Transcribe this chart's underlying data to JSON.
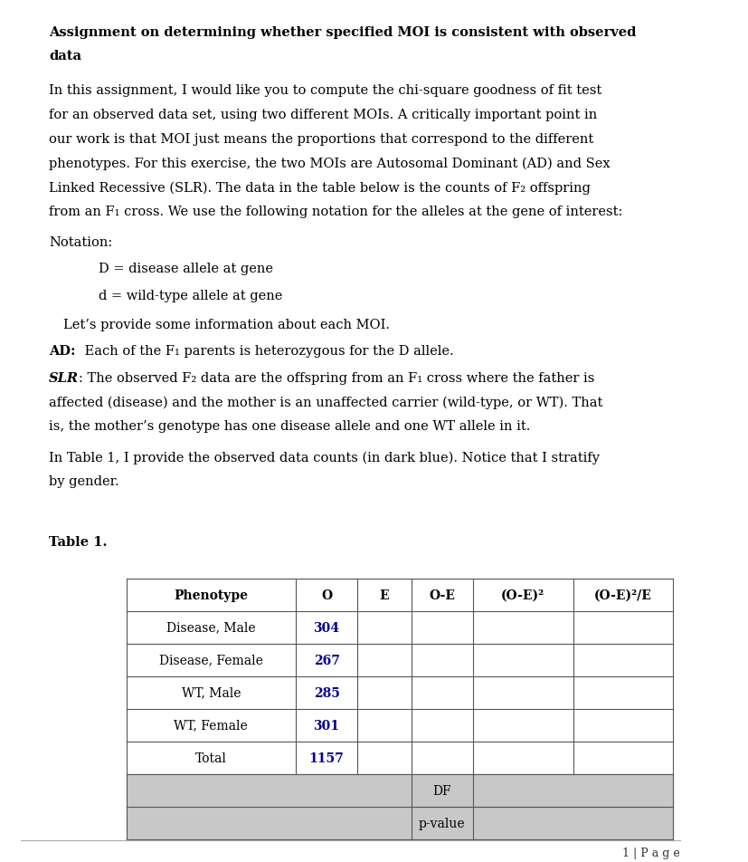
{
  "title_lines": [
    "Assignment on determining whether specified MOI is consistent with observed",
    "data"
  ],
  "paragraph1_lines": [
    "In this assignment, I would like you to compute the chi-square goodness of fit test",
    "for an observed data set, using two different MOIs. A critically important point in",
    "our work is that MOI just means the proportions that correspond to the different",
    "phenotypes. For this exercise, the two MOIs are Autosomal Dominant (AD) and Sex",
    "Linked Recessive (SLR). The data in the table below is the counts of F₂ offspring",
    "from an F₁ cross. We use the following notation for the alleles at the gene of interest:"
  ],
  "notation_label": "Notation:",
  "notation_D": "D = disease allele at gene",
  "notation_d": "d = wild-type allele at gene",
  "lets_provide": "Let’s provide some information about each MOI.",
  "ad_bold": "AD:",
  "ad_text": " Each of the F₁ parents is heterozygous for the D allele.",
  "slr_bold": "SLR",
  "slr_lines": [
    ": The observed F₂ data are the offspring from an F₁ cross where the father is",
    "affected (disease) and the mother is an unaffected carrier (wild-type, or WT). That",
    "is, the mother’s genotype has one disease allele and one WT allele in it."
  ],
  "in_table_lines": [
    "In Table 1, I provide the observed data counts (in dark blue). Notice that I stratify",
    "by gender."
  ],
  "table_label": "Table 1.",
  "table_headers": [
    "Phenotype",
    "O",
    "E",
    "O-E",
    "(O-E)²",
    "(O-E)²/E"
  ],
  "table_rows": [
    [
      "Disease, Male",
      "304",
      "",
      "",
      "",
      ""
    ],
    [
      "Disease, Female",
      "267",
      "",
      "",
      "",
      ""
    ],
    [
      "WT, Male",
      "285",
      "",
      "",
      "",
      ""
    ],
    [
      "WT, Female",
      "301",
      "",
      "",
      "",
      ""
    ],
    [
      "Total",
      "1157",
      "",
      "",
      "",
      ""
    ]
  ],
  "footer_row1": [
    "",
    "",
    "",
    "DF",
    ""
  ],
  "footer_row2": [
    "",
    "",
    "",
    "p-value",
    ""
  ],
  "data_color": "#00008B",
  "footer_bg": "#c8c8c8",
  "page_footer": "1 | P a g e",
  "bg_color": "#ffffff",
  "text_color": "#000000",
  "grid_color": "#555555"
}
